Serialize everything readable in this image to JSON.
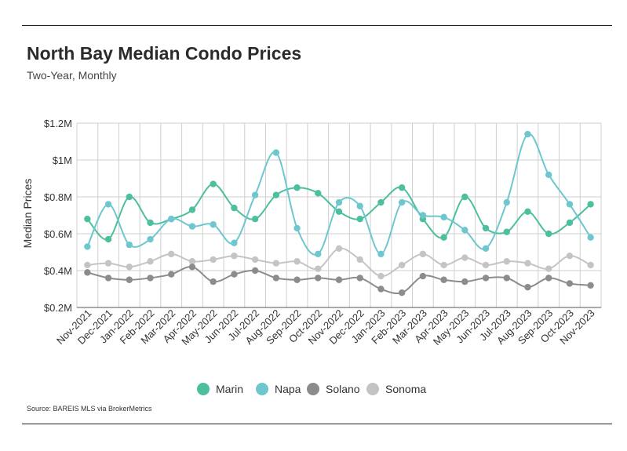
{
  "header": {
    "title": "North Bay Median Condo Prices",
    "subtitle": "Two-Year, Monthly"
  },
  "footer": {
    "source": "Source:  BAREIS MLS via BrokerMetrics"
  },
  "colors": {
    "Marin": "#4dbf9e",
    "Napa": "#6ec7cf",
    "Solano": "#8c8c8c",
    "Sonoma": "#c4c4c4",
    "grid": "#cfcfcf",
    "axis": "#555555"
  },
  "chart_data": {
    "type": "line",
    "title": "North Bay Median Condo Prices",
    "subtitle": "Two-Year, Monthly",
    "xlabel": "",
    "ylabel": "Median Prices",
    "ylim": [
      0.2,
      1.2
    ],
    "yticks": [
      0.2,
      0.4,
      0.6,
      0.8,
      1.0,
      1.2
    ],
    "ytick_labels": [
      "$0.2M",
      "$0.4M",
      "$0.6M",
      "$0.8M",
      "$1M",
      "$1.2M"
    ],
    "grid": true,
    "legend_position": "bottom",
    "categories": [
      "Nov-2021",
      "Dec-2021",
      "Jan-2022",
      "Feb-2022",
      "Mar-2022",
      "Apr-2022",
      "May-2022",
      "Jun-2022",
      "Jul-2022",
      "Aug-2022",
      "Sep-2022",
      "Oct-2022",
      "Nov-2022",
      "Dec-2022",
      "Jan-2023",
      "Feb-2023",
      "Mar-2023",
      "Apr-2023",
      "May-2023",
      "Jun-2023",
      "Jul-2023",
      "Aug-2023",
      "Sep-2023",
      "Oct-2023",
      "Nov-2023"
    ],
    "series": [
      {
        "name": "Marin",
        "values": [
          0.68,
          0.57,
          0.8,
          0.66,
          0.68,
          0.73,
          0.87,
          0.74,
          0.68,
          0.81,
          0.85,
          0.82,
          0.72,
          0.68,
          0.77,
          0.85,
          0.68,
          0.58,
          0.8,
          0.63,
          0.61,
          0.72,
          0.6,
          0.66,
          0.76
        ]
      },
      {
        "name": "Napa",
        "values": [
          0.53,
          0.76,
          0.54,
          0.57,
          0.68,
          0.64,
          0.65,
          0.55,
          0.81,
          1.04,
          0.63,
          0.49,
          0.77,
          0.75,
          0.49,
          0.77,
          0.7,
          0.69,
          0.62,
          0.52,
          0.77,
          1.14,
          0.92,
          0.76,
          0.58
        ]
      },
      {
        "name": "Solano",
        "values": [
          0.39,
          0.36,
          0.35,
          0.36,
          0.38,
          0.42,
          0.34,
          0.38,
          0.4,
          0.36,
          0.35,
          0.36,
          0.35,
          0.36,
          0.3,
          0.28,
          0.37,
          0.35,
          0.34,
          0.36,
          0.36,
          0.31,
          0.36,
          0.33,
          0.32
        ]
      },
      {
        "name": "Sonoma",
        "values": [
          0.43,
          0.44,
          0.42,
          0.45,
          0.49,
          0.45,
          0.46,
          0.48,
          0.46,
          0.44,
          0.45,
          0.41,
          0.52,
          0.46,
          0.37,
          0.43,
          0.49,
          0.43,
          0.47,
          0.43,
          0.45,
          0.44,
          0.41,
          0.48,
          0.43
        ]
      }
    ]
  }
}
